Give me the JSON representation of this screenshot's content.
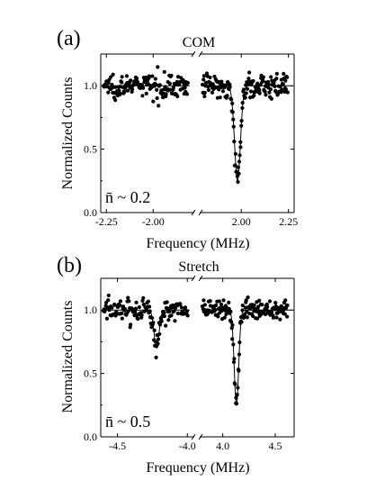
{
  "chart_data": [
    {
      "type": "scatter",
      "panel_label": "(a)",
      "title": "COM",
      "xlabel": "Frequency (MHz)",
      "ylabel": "Normalized Counts",
      "annotation": "n̄ ~ 0.2",
      "broken_x_axis": true,
      "xlim_left": [
        -2.28,
        -1.78
      ],
      "xlim_right": [
        1.78,
        2.28
      ],
      "ylim": [
        0.0,
        1.25
      ],
      "xticks_left": [
        -2.25,
        -2.0
      ],
      "xtick_labels_left": [
        "-2.25",
        "-2.00"
      ],
      "xticks_right": [
        2.0,
        2.25
      ],
      "xtick_labels_right": [
        "2.00",
        "2.25"
      ],
      "yticks": [
        0.0,
        0.5,
        1.0
      ],
      "ytick_labels": [
        "0.0",
        "0.5",
        "1.0"
      ],
      "fit_left": {
        "center": -2.0,
        "depth": 0.0,
        "width": 0.02
      },
      "fit_right": {
        "center": 1.98,
        "depth": 0.75,
        "width": 0.022
      }
    },
    {
      "type": "scatter",
      "panel_label": "(b)",
      "title": "Stretch",
      "xlabel": "Frequency (MHz)",
      "ylabel": "Normalized Counts",
      "annotation": "n̄ ~ 0.5",
      "broken_x_axis": true,
      "xlim_left": [
        -4.62,
        -3.95
      ],
      "xlim_right": [
        3.78,
        4.68
      ],
      "ylim": [
        0.0,
        1.25
      ],
      "xticks_left": [
        -4.5,
        -4.0
      ],
      "xtick_labels_left": [
        "-4.5",
        "-4.0"
      ],
      "xticks_right": [
        4.0,
        4.5
      ],
      "xtick_labels_right": [
        "4.0",
        "4.5"
      ],
      "yticks": [
        0.0,
        0.5,
        1.0
      ],
      "ytick_labels": [
        "0.0",
        "0.5",
        "1.0"
      ],
      "fit_left": {
        "center": -4.22,
        "depth": 0.3,
        "width": 0.025
      },
      "fit_right": {
        "center": 4.13,
        "depth": 0.75,
        "width": 0.03
      }
    }
  ]
}
